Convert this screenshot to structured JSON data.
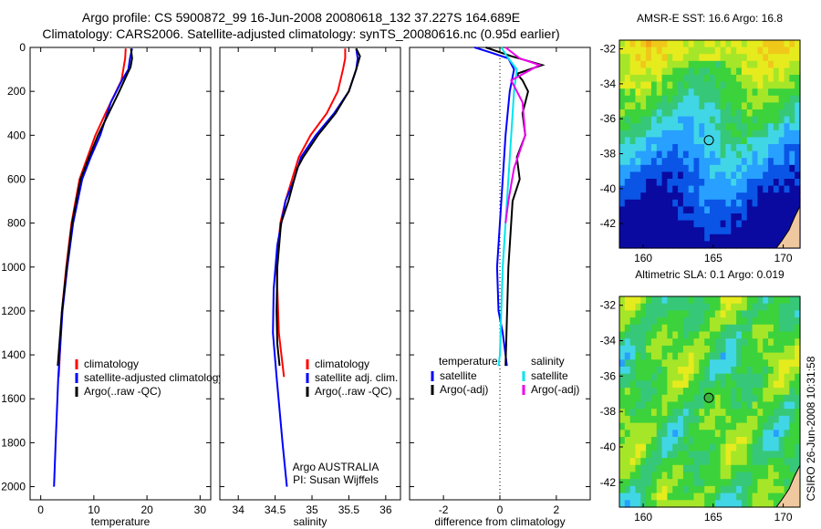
{
  "header": {
    "line1": "Argo profile: CS 5900872_99 16-Jun-2008 20080618_132 37.227S 164.689E",
    "line2": "Climatology: CARS2006. Satellite-adjusted climatology: synTS_20080616.nc (0.95d earlier)"
  },
  "colors": {
    "climatology": "#ff0000",
    "satellite": "#0000ff",
    "argo": "#000000",
    "sat_salinity": "#00e5ee",
    "argo_adj_salinity": "#ee00ee"
  },
  "chart_data": [
    {
      "type": "line",
      "id": "temperature",
      "xlabel": "temperature",
      "ylabel": "",
      "xlim": [
        -2,
        32
      ],
      "ylim": [
        2060,
        0
      ],
      "xticks": [
        "0",
        "10",
        "20",
        "30"
      ],
      "yticks": [
        "0",
        "200",
        "400",
        "600",
        "800",
        "1000",
        "1200",
        "1400",
        "1600",
        "1800",
        "2000"
      ],
      "legend": [
        "climatology",
        "satellite-adjusted climatology",
        "Argo(..raw -QC)"
      ],
      "series": [
        {
          "name": "climatology",
          "color": "#ff0000",
          "x": [
            16.0,
            15.9,
            15.2,
            14.2,
            12.2,
            10.3,
            8.8,
            7.3,
            5.8,
            4.8,
            4.0,
            3.4
          ],
          "y": [
            5,
            50,
            150,
            200,
            300,
            400,
            500,
            600,
            800,
            1000,
            1200,
            1500
          ]
        },
        {
          "name": "satellite-adjusted climatology",
          "color": "#0000ff",
          "x": [
            17.2,
            16.8,
            16.5,
            15.3,
            13.2,
            11.2,
            9.4,
            7.8,
            6.1,
            5.0,
            4.1,
            3.3,
            2.8,
            2.5
          ],
          "y": [
            5,
            50,
            100,
            150,
            250,
            400,
            500,
            600,
            800,
            1000,
            1200,
            1500,
            1800,
            2000
          ]
        },
        {
          "name": "Argo(..raw -QC)",
          "color": "#000000",
          "x": [
            17.0,
            17.2,
            16.9,
            16.3,
            14.8,
            12.8,
            10.8,
            9.1,
            7.5,
            5.9,
            4.9,
            4.0,
            3.2
          ],
          "y": [
            5,
            50,
            90,
            120,
            200,
            300,
            400,
            500,
            600,
            800,
            1000,
            1200,
            1450
          ]
        }
      ]
    },
    {
      "type": "line",
      "id": "salinity",
      "xlabel": "salinity",
      "xlim": [
        33.75,
        36.2
      ],
      "ylim": [
        2060,
        0
      ],
      "xticks": [
        "34",
        "34.5",
        "35",
        "35.5",
        "36"
      ],
      "legend": [
        "climatology",
        "satellite adj. clim.",
        "Argo(..raw -QC)"
      ],
      "annotation": [
        "Argo AUSTRALIA",
        "PI: Susan Wijffels"
      ],
      "series": [
        {
          "name": "climatology",
          "color": "#ff0000",
          "x": [
            35.45,
            35.45,
            35.42,
            35.35,
            35.2,
            34.98,
            34.82,
            34.73,
            34.64,
            34.57,
            34.52,
            34.55,
            34.62
          ],
          "y": [
            5,
            50,
            100,
            200,
            300,
            400,
            500,
            600,
            700,
            800,
            1000,
            1300,
            1500
          ]
        },
        {
          "name": "satellite adj. clim.",
          "color": "#0000ff",
          "x": [
            35.6,
            35.62,
            35.6,
            35.5,
            35.3,
            35.05,
            34.85,
            34.76,
            34.64,
            34.53,
            34.48,
            34.47,
            34.52,
            34.6,
            34.66
          ],
          "y": [
            5,
            50,
            100,
            200,
            300,
            400,
            500,
            600,
            700,
            900,
            1100,
            1300,
            1500,
            1800,
            2000
          ]
        },
        {
          "name": "Argo(..raw -QC)",
          "color": "#000000",
          "x": [
            35.6,
            35.65,
            35.6,
            35.5,
            35.32,
            35.08,
            34.88,
            34.8,
            34.76,
            34.68,
            34.58,
            34.53,
            34.52,
            34.53,
            34.56
          ],
          "y": [
            5,
            40,
            100,
            200,
            300,
            400,
            500,
            550,
            600,
            700,
            800,
            1000,
            1200,
            1350,
            1450
          ]
        }
      ]
    },
    {
      "type": "line",
      "id": "difference",
      "xlabel": "difference from climatology",
      "xlim": [
        -3.2,
        3.2
      ],
      "ylim": [
        2060,
        0
      ],
      "xticks": [
        "-2",
        "0",
        "2"
      ],
      "legend_left_title": "temperature",
      "legend_right_title": "salinity",
      "legend": [
        "satellite",
        "Argo(-adj)",
        "satellite",
        "Argo(-adj)"
      ],
      "series": [
        {
          "name": "temperature satellite",
          "color": "#0000ff",
          "x": [
            -0.9,
            -0.4,
            0.3,
            0.5,
            0.35,
            0.2,
            0.1,
            0.0,
            -0.1,
            -0.05,
            0.1,
            0.2,
            0.25
          ],
          "y": [
            0,
            20,
            50,
            100,
            200,
            400,
            600,
            800,
            1000,
            1200,
            1300,
            1400,
            1450
          ]
        },
        {
          "name": "temperature Argo(-adj)",
          "color": "#000000",
          "x": [
            -0.5,
            0.4,
            1.5,
            0.6,
            0.8,
            1.0,
            0.8,
            0.9,
            0.6,
            0.7,
            0.45,
            0.3,
            0.2
          ],
          "y": [
            0,
            40,
            80,
            120,
            150,
            200,
            300,
            400,
            500,
            600,
            700,
            1000,
            1450
          ]
        },
        {
          "name": "salinity satellite",
          "color": "#00e5ee",
          "x": [
            0.05,
            0.3,
            0.6,
            0.5,
            0.4,
            0.3,
            0.2,
            0.1,
            0.05,
            0.0,
            -0.05
          ],
          "y": [
            0,
            50,
            100,
            200,
            400,
            600,
            800,
            1000,
            1200,
            1400,
            1450
          ]
        },
        {
          "name": "salinity Argo(-adj)",
          "color": "#ee00ee",
          "x": [
            0.2,
            0.7,
            1.4,
            0.4,
            0.8,
            0.9,
            0.5,
            0.3,
            0.2
          ],
          "y": [
            0,
            50,
            80,
            150,
            250,
            400,
            550,
            700,
            800
          ]
        }
      ]
    },
    {
      "type": "heatmap",
      "id": "sst-map",
      "title": "AMSR-E SST: 16.6 Argo: 16.8",
      "xlim": [
        158.3,
        171.2
      ],
      "ylim": [
        -43.4,
        -31.5
      ],
      "xticks": [
        "160",
        "165",
        "170"
      ],
      "yticks": [
        "-32",
        "-34",
        "-36",
        "-38",
        "-40",
        "-42"
      ],
      "marker": {
        "lon": 164.689,
        "lat": -37.227
      }
    },
    {
      "type": "heatmap",
      "id": "sla-map",
      "title": "Altimetric SLA: 0.1 Argo: 0.019",
      "xlim": [
        158.3,
        171.2
      ],
      "ylim": [
        -43.4,
        -31.5
      ],
      "xticks": [
        "160",
        "165",
        "170"
      ],
      "yticks": [
        "-32",
        "-34",
        "-36",
        "-38",
        "-40",
        "-42"
      ],
      "marker": {
        "lon": 164.689,
        "lat": -37.227
      }
    }
  ],
  "footer": {
    "stamp": "CSIRO 26-Jun-2008 10:31:58"
  }
}
